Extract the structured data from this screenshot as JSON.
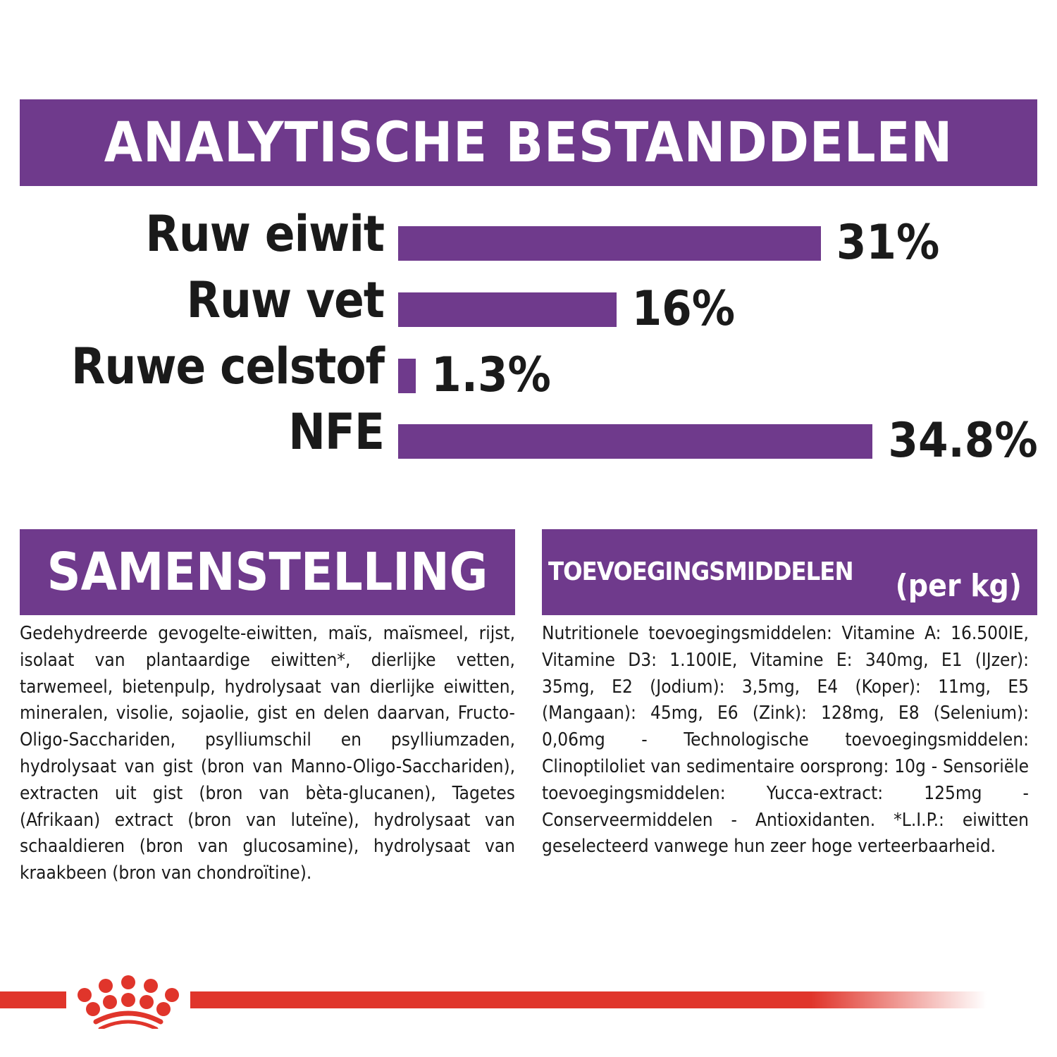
{
  "analysis": {
    "title": "ANALYTISCHE BESTANDDELEN",
    "items": [
      {
        "label": "Ruw eiwit",
        "value": 31,
        "display": "31%"
      },
      {
        "label": "Ruw vet",
        "value": 16,
        "display": "16%"
      },
      {
        "label": "Ruwe celstof",
        "value": 1.3,
        "display": "1.3%"
      },
      {
        "label": "NFE",
        "value": 34.8,
        "display": "34.8%"
      }
    ]
  },
  "chart_data": {
    "type": "bar",
    "orientation": "horizontal",
    "title": "ANALYTISCHE BESTANDDELEN",
    "categories": [
      "Ruw eiwit",
      "Ruw vet",
      "Ruwe celstof",
      "NFE"
    ],
    "values": [
      31,
      16,
      1.3,
      34.8
    ],
    "unit": "%",
    "grid": false
  },
  "composition": {
    "title": "SAMENSTELLING",
    "text": "Gedehydreerde gevogelte-eiwitten, maïs, maïsmeel, rijst, isolaat van plantaardige eiwitten*, dierlijke vetten, tarwemeel, bietenpulp, hydrolysaat van dierlijke eiwitten, mineralen, visolie, sojaolie, gist en delen daarvan, Fructo-Oligo-Sacchariden, psylliumschil en psylliumzaden, hydrolysaat van gist (bron van Manno-Oligo-Sacchariden), extracten uit gist (bron van bèta-glucanen), Tagetes (Afrikaan) extract (bron van luteïne), hydrolysaat van schaaldieren (bron van glucosamine), hydrolysaat van kraakbeen (bron van chondroïtine)."
  },
  "additives": {
    "title": "TOEVOEGINGSMIDDELEN",
    "unit": "(per kg)",
    "text": "Nutritionele toevoegingsmiddelen: Vitamine A: 16.500IE, Vitamine D3: 1.100IE, Vitamine E: 340mg, E1 (IJzer): 35mg, E2 (Jodium): 3,5mg, E4 (Koper): 11mg, E5 (Mangaan): 45mg, E6 (Zink): 128mg, E8 (Selenium): 0,06mg - Technologische toevoegingsmiddelen: Clinoptiloliet van sedimentaire oorsprong: 10g - Sensoriële toevoegingsmiddelen: Yucca-extract: 125mg - Conserveermiddelen - Antioxidanten. *L.I.P.: eiwitten geselecteerd vanwege hun zeer hoge verteerbaarheid."
  },
  "colors": {
    "purple": "#6f3a8c",
    "red": "#e0352b"
  },
  "footer": {
    "logo_icon": "crown-logo-icon"
  }
}
